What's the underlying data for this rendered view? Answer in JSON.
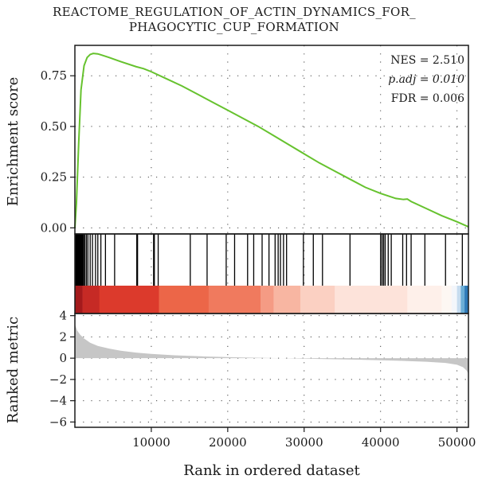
{
  "chart_data": {
    "type": "line",
    "title_lines": [
      "REACTOME_REGULATION_OF_ACTIN_DYNAMICS_FOR_",
      "PHAGOCYTIC_CUP_FORMATION"
    ],
    "xlabel": "Rank in ordered dataset",
    "xlim": [
      0,
      51500
    ],
    "x_ticks": [
      10000,
      20000,
      30000,
      40000,
      50000
    ],
    "x_tick_labels": [
      "10000",
      "20000",
      "30000",
      "40000",
      "50000"
    ],
    "grid": "dotted",
    "enrichment": {
      "ylabel": "Enrichment score",
      "ylim": [
        -0.03,
        0.9
      ],
      "y_ticks": [
        0,
        0.25,
        0.5,
        0.75
      ],
      "y_tick_labels": [
        "0.00",
        "0.25",
        "0.50",
        "0.75"
      ],
      "color": "#66c22e",
      "x": [
        0,
        200,
        500,
        800,
        1200,
        1600,
        2000,
        2400,
        3000,
        3500,
        4500,
        6000,
        8000,
        9000,
        10000,
        12000,
        14000,
        16000,
        18000,
        20000,
        22000,
        24000,
        26000,
        28000,
        30000,
        32000,
        34000,
        36000,
        38000,
        40000,
        42000,
        43000,
        43500,
        44000,
        46000,
        48000,
        50000,
        51500
      ],
      "y": [
        0.0,
        0.12,
        0.42,
        0.68,
        0.8,
        0.84,
        0.855,
        0.86,
        0.858,
        0.852,
        0.84,
        0.82,
        0.795,
        0.785,
        0.77,
        0.735,
        0.7,
        0.66,
        0.62,
        0.58,
        0.54,
        0.5,
        0.455,
        0.41,
        0.365,
        0.32,
        0.28,
        0.24,
        0.2,
        0.17,
        0.145,
        0.14,
        0.142,
        0.13,
        0.095,
        0.06,
        0.03,
        0.005
      ]
    },
    "stats": [
      "NES = 2.510",
      "p.adj = 0.010",
      "FDR = 0.006"
    ],
    "hits": [
      120,
      200,
      280,
      350,
      420,
      500,
      580,
      660,
      740,
      820,
      900,
      980,
      1060,
      1150,
      1300,
      1500,
      1700,
      2000,
      2300,
      2700,
      3000,
      3400,
      4000,
      5200,
      8100,
      8200,
      10300,
      10400,
      10900,
      15100,
      17300,
      19800,
      20900,
      22600,
      23400,
      24500,
      25400,
      26200,
      26600,
      26900,
      27300,
      27700,
      29900,
      31200,
      32400,
      36000,
      40000,
      40200,
      40400,
      40600,
      41000,
      41400,
      42900,
      43400,
      44000,
      45800,
      48500,
      50700
    ],
    "heat_colors": [
      {
        "from": 0,
        "to": 1000,
        "color": "#a41a1c"
      },
      {
        "from": 1000,
        "to": 3200,
        "color": "#c62a25"
      },
      {
        "from": 3200,
        "to": 11000,
        "color": "#dc3a2c"
      },
      {
        "from": 11000,
        "to": 17500,
        "color": "#ec6648"
      },
      {
        "from": 17500,
        "to": 24300,
        "color": "#f07a5e"
      },
      {
        "from": 24300,
        "to": 26000,
        "color": "#f59b84"
      },
      {
        "from": 26000,
        "to": 29500,
        "color": "#f8b6a2"
      },
      {
        "from": 29500,
        "to": 34000,
        "color": "#fbd0c2"
      },
      {
        "from": 34000,
        "to": 43500,
        "color": "#fde3da"
      },
      {
        "from": 43500,
        "to": 48000,
        "color": "#fef0ea"
      },
      {
        "from": 48000,
        "to": 49300,
        "color": "#fdf7f3"
      },
      {
        "from": 49300,
        "to": 50000,
        "color": "#f3f6fb"
      },
      {
        "from": 50000,
        "to": 50500,
        "color": "#c6dcef"
      },
      {
        "from": 50500,
        "to": 51000,
        "color": "#6baed6"
      },
      {
        "from": 51000,
        "to": 51500,
        "color": "#2f7ab8"
      }
    ],
    "ranked": {
      "ylabel": "Ranked metric",
      "ylim": [
        -6.5,
        4.2
      ],
      "y_ticks": [
        -6,
        -4,
        -2,
        0,
        2,
        4
      ],
      "y_tick_labels": [
        "−6",
        "−4",
        "−2",
        "0",
        "2",
        "4"
      ],
      "color": "#c6c6c6",
      "x": [
        0,
        300,
        700,
        1200,
        2000,
        3000,
        4500,
        6000,
        8000,
        10000,
        13000,
        17000,
        22000,
        27000,
        32000,
        37000,
        42000,
        46000,
        48500,
        50000,
        50800,
        51300,
        51500
      ],
      "y": [
        3.2,
        2.6,
        2.2,
        1.85,
        1.45,
        1.15,
        0.9,
        0.7,
        0.52,
        0.4,
        0.27,
        0.16,
        0.07,
        0.0,
        -0.07,
        -0.14,
        -0.23,
        -0.34,
        -0.45,
        -0.62,
        -0.85,
        -1.2,
        -1.5
      ]
    }
  }
}
